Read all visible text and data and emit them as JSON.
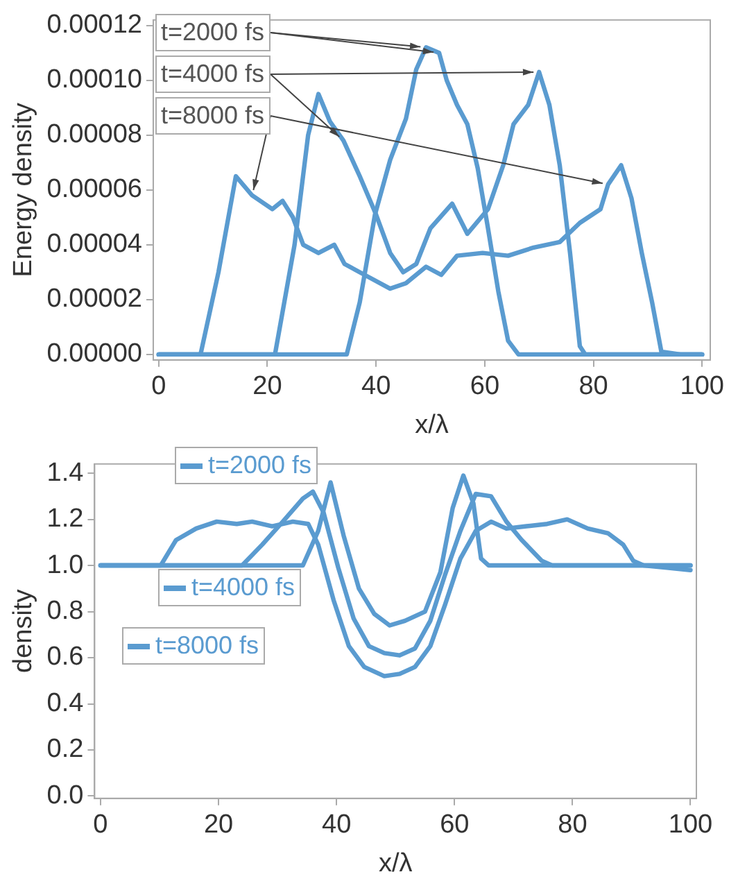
{
  "chart_data": [
    {
      "type": "line",
      "xlabel": "x/λ",
      "ylabel": "Energy density",
      "xlim": [
        -1,
        101.5
      ],
      "ylim": [
        -2e-06,
        0.000122
      ],
      "xticks": [
        0,
        20,
        40,
        60,
        80,
        100
      ],
      "yticks": [
        {
          "value": 0,
          "label": "0.00000"
        },
        {
          "value": 2e-05,
          "label": "0.00002"
        },
        {
          "value": 4e-05,
          "label": "0.00004"
        },
        {
          "value": 6e-05,
          "label": "0.00006"
        },
        {
          "value": 8e-05,
          "label": "0.00008"
        },
        {
          "value": 0.0001,
          "label": "0.00010"
        },
        {
          "value": 0.00012,
          "label": "0.00012"
        }
      ],
      "marker": "none",
      "line_style": "solid",
      "series": [
        {
          "name": "t=2000 fs",
          "color": "#5a9bd0",
          "x": [
            0,
            10,
            20,
            30,
            34.6,
            37,
            39.8,
            42.6,
            45.5,
            47.4,
            49.2,
            51.6,
            53,
            54.9,
            56.8,
            58.7,
            60.6,
            62.5,
            64.3,
            66.2,
            70,
            80,
            90,
            100
          ],
          "values": [
            0,
            0,
            0,
            0,
            0,
            1.9e-05,
            5.1e-05,
            7.1e-05,
            8.6e-05,
            0.000104,
            0.000112,
            0.00011,
            0.0001,
            9.1e-05,
            8.4e-05,
            6.8e-05,
            4.6e-05,
            2.3e-05,
            5e-06,
            0,
            0,
            0,
            0,
            0
          ]
        },
        {
          "name": "t=4000 fs",
          "color": "#5a9bd0",
          "x": [
            0,
            10,
            20,
            21.4,
            25,
            27.5,
            29.4,
            31.5,
            34,
            37,
            40,
            42.6,
            45,
            47.4,
            50,
            54,
            56.8,
            60.6,
            63.4,
            65.3,
            68,
            70,
            71.9,
            73.8,
            75.7,
            77.5,
            78.5,
            85,
            90,
            100
          ],
          "values": [
            0,
            0,
            0,
            0,
            4e-05,
            8e-05,
            9.5e-05,
            8.5e-05,
            7.8e-05,
            6.5e-05,
            5.1e-05,
            3.7e-05,
            3e-05,
            3.3e-05,
            4.6e-05,
            5.5e-05,
            4.4e-05,
            5.3e-05,
            6.9e-05,
            8.4e-05,
            9.1e-05,
            0.000103,
            9.1e-05,
            6.9e-05,
            3.7e-05,
            3e-06,
            0,
            0,
            0,
            0
          ]
        },
        {
          "name": "t=8000 fs",
          "color": "#5a9bd0",
          "x": [
            0,
            5,
            7.7,
            11,
            14.2,
            17.2,
            20.9,
            22.8,
            24.7,
            26.6,
            29.4,
            32.3,
            34.2,
            37.9,
            42.6,
            45.5,
            49.2,
            52,
            54.9,
            59.6,
            64.3,
            69,
            73.8,
            77.5,
            81.3,
            82.7,
            85.1,
            87,
            88.9,
            90.8,
            92.5,
            96,
            100
          ],
          "values": [
            0,
            0,
            0,
            3e-05,
            6.5e-05,
            5.8e-05,
            5.3e-05,
            5.6e-05,
            5e-05,
            4e-05,
            3.7e-05,
            4e-05,
            3.3e-05,
            2.9e-05,
            2.4e-05,
            2.6e-05,
            3.2e-05,
            2.9e-05,
            3.6e-05,
            3.7e-05,
            3.6e-05,
            3.9e-05,
            4.1e-05,
            4.8e-05,
            5.3e-05,
            6.2e-05,
            6.9e-05,
            5.7e-05,
            3.7e-05,
            1.9e-05,
            1e-06,
            0,
            0
          ]
        }
      ]
    },
    {
      "type": "line",
      "legend": "top left",
      "xlabel": "x/λ",
      "ylabel": "density",
      "xlim": [
        -1,
        101
      ],
      "ylim": [
        -0.01,
        1.44
      ],
      "xticks": [
        0,
        20,
        40,
        60,
        80,
        100
      ],
      "yticks": [
        {
          "value": 0,
          "label": "0.0"
        },
        {
          "value": 0.2,
          "label": "0.2"
        },
        {
          "value": 0.4,
          "label": "0.4"
        },
        {
          "value": 0.6,
          "label": "0.6"
        },
        {
          "value": 0.8,
          "label": "0.8"
        },
        {
          "value": 1,
          "label": "1.0"
        },
        {
          "value": 1.2,
          "label": "1.2"
        },
        {
          "value": 1.4,
          "label": "1.4"
        }
      ],
      "marker": "none",
      "line_style": "solid",
      "series": [
        {
          "name": "t=2000 fs",
          "color": "#5a9bd0",
          "x": [
            0,
            10,
            20,
            30,
            34.3,
            36.9,
            39,
            41.2,
            43.8,
            46.4,
            49,
            51.6,
            55,
            57.6,
            59.7,
            61.5,
            63.2,
            64.5,
            65.8,
            70,
            80,
            90,
            100
          ],
          "values": [
            1,
            1,
            1,
            1,
            1,
            1.15,
            1.36,
            1.13,
            0.9,
            0.79,
            0.74,
            0.76,
            0.8,
            0.97,
            1.25,
            1.39,
            1.27,
            1.03,
            1,
            1,
            1,
            1,
            1
          ]
        },
        {
          "name": "t=4000 fs",
          "color": "#5a9bd0",
          "x": [
            0,
            10,
            20,
            24,
            27.4,
            30.9,
            34.3,
            36,
            37.8,
            40.3,
            42.9,
            45.5,
            48.1,
            50.7,
            53.3,
            55.9,
            58.4,
            61,
            63.6,
            66.2,
            68.8,
            71.4,
            74.8,
            76.6,
            80,
            90,
            100
          ],
          "values": [
            1,
            1,
            1,
            1,
            1.09,
            1.19,
            1.29,
            1.32,
            1.23,
            0.99,
            0.77,
            0.65,
            0.62,
            0.61,
            0.64,
            0.76,
            0.96,
            1.15,
            1.31,
            1.3,
            1.19,
            1.11,
            1.02,
            1,
            1,
            1,
            1
          ]
        },
        {
          "name": "t=8000 fs",
          "color": "#5a9bd0",
          "x": [
            0,
            5,
            10.2,
            12.8,
            16.2,
            19.7,
            23.1,
            25.7,
            29.1,
            32.6,
            35.2,
            36.9,
            39.5,
            42.1,
            44.7,
            48.1,
            50.7,
            53.3,
            55.9,
            58.4,
            61,
            63.6,
            66.2,
            68.8,
            72.2,
            75.7,
            79.1,
            82.6,
            86,
            88.6,
            90.3,
            92.1,
            96,
            100
          ],
          "values": [
            1,
            1,
            1,
            1.11,
            1.16,
            1.19,
            1.18,
            1.19,
            1.17,
            1.19,
            1.18,
            1.09,
            0.85,
            0.65,
            0.56,
            0.52,
            0.53,
            0.56,
            0.65,
            0.83,
            1.03,
            1.15,
            1.19,
            1.16,
            1.17,
            1.18,
            1.2,
            1.16,
            1.14,
            1.09,
            1.02,
            1,
            0.99,
            0.98
          ]
        }
      ]
    }
  ]
}
